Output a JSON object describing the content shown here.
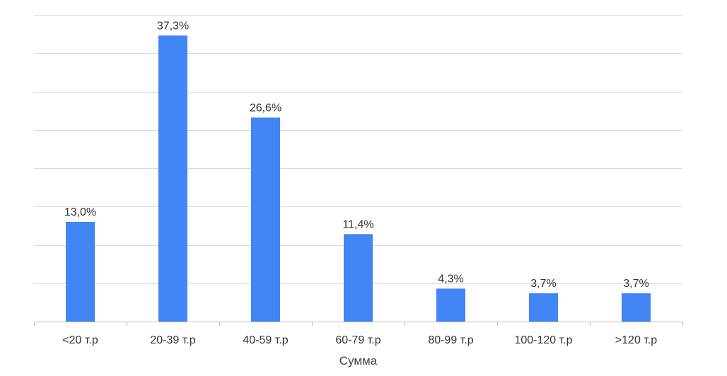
{
  "chart_data": {
    "type": "bar",
    "categories": [
      "<20 т.р",
      "20-39 т.р",
      "40-59 т.р",
      "60-79 т.р",
      "80-99 т.р",
      "100-120 т.р",
      ">120 т.р"
    ],
    "values": [
      13.0,
      37.3,
      26.6,
      11.4,
      4.3,
      3.7,
      3.7
    ],
    "data_labels": [
      "13,0%",
      "37,3%",
      "26,6%",
      "11,4%",
      "4,3%",
      "3,7%",
      "3,7%"
    ],
    "xlabel": "Сумма",
    "ylabel": "",
    "ylim": [
      0,
      40
    ],
    "grid": true,
    "legend": "none",
    "colors": {
      "bar": "#4285f4"
    }
  }
}
